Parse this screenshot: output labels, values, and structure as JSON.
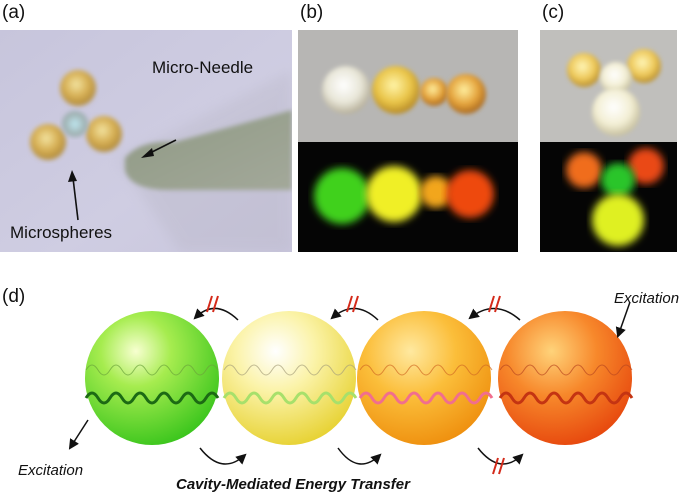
{
  "panels": {
    "a": {
      "label": "(a)",
      "needle_label": "Micro-Needle",
      "spheres_label": "Microspheres"
    },
    "b": {
      "label": "(b)"
    },
    "c": {
      "label": "(c)"
    },
    "d": {
      "label": "(d)",
      "excitation_left": "Excitation",
      "excitation_right": "Excitation",
      "caption": "Cavity-Mediated Energy Transfer"
    }
  },
  "colors": {
    "sphere_green": "#3fd11f",
    "sphere_yellow": "#f2e03a",
    "sphere_orange": "#f4a10f",
    "sphere_red": "#ee4a0f",
    "blocked_mark": "#d42a1a"
  }
}
